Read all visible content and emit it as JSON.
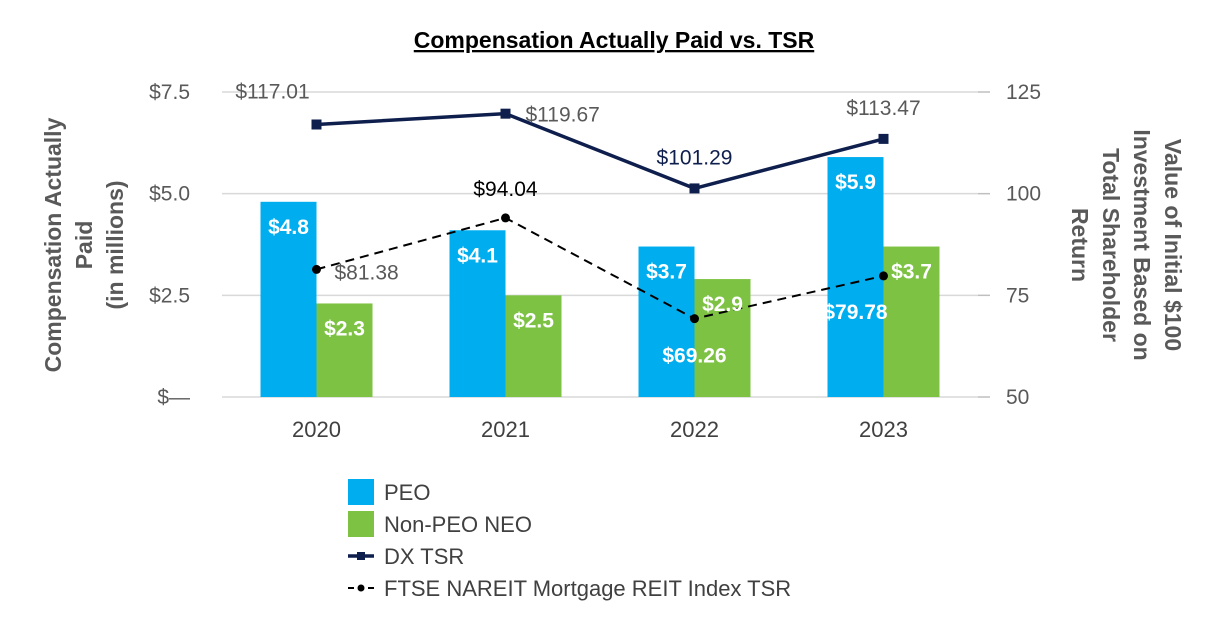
{
  "chart_data": {
    "type": "bar",
    "title": "Compensation Actually Paid vs. TSR",
    "categories": [
      "2020",
      "2021",
      "2022",
      "2023"
    ],
    "ylabel_left": [
      "Compensation Actually",
      "Paid",
      "(in millions)"
    ],
    "ylabel_right": [
      "Value of Initial $100",
      "Investment Based on",
      "Total Shareholder",
      "Return"
    ],
    "ylim_left": [
      0,
      7.5
    ],
    "yticks_left": [
      {
        "value": 0,
        "label": "$—"
      },
      {
        "value": 2.5,
        "label": "$2.5"
      },
      {
        "value": 5.0,
        "label": "$5.0"
      },
      {
        "value": 7.5,
        "label": "$7.5"
      }
    ],
    "ylim_right": [
      50,
      125
    ],
    "yticks_right": [
      {
        "value": 50,
        "label": "50"
      },
      {
        "value": 75,
        "label": "75"
      },
      {
        "value": 100,
        "label": "100"
      },
      {
        "value": 125,
        "label": "125"
      }
    ],
    "bar_series": [
      {
        "name": "PEO",
        "color": "#00AEEF",
        "values": [
          4.8,
          4.1,
          3.7,
          5.9
        ],
        "labels": [
          "$4.8",
          "$4.1",
          "$3.7",
          "$5.9"
        ]
      },
      {
        "name": "Non-PEO NEO",
        "color": "#7DC243",
        "values": [
          2.3,
          2.5,
          2.9,
          3.7
        ],
        "labels": [
          "$2.3",
          "$2.5",
          "$2.9",
          "$3.7"
        ]
      }
    ],
    "line_series": [
      {
        "name": "DX TSR",
        "color": "#0F1F4D",
        "style": "solid",
        "marker": "square",
        "values": [
          117.01,
          119.67,
          101.29,
          113.47
        ],
        "labels": [
          "$117.01",
          "$119.67",
          "$101.29",
          "$113.47"
        ]
      },
      {
        "name": "FTSE NAREIT Mortgage REIT Index TSR",
        "color": "#000000",
        "style": "dashed",
        "marker": "circle",
        "values": [
          81.38,
          94.04,
          69.26,
          79.78
        ],
        "labels": [
          "$81.38",
          "$94.04",
          "$69.26",
          "$79.78"
        ]
      }
    ],
    "legend": [
      "PEO",
      "Non-PEO NEO",
      "DX TSR",
      "FTSE NAREIT Mortgage REIT Index TSR"
    ],
    "legend_position": "bottom-center",
    "grid": true
  }
}
